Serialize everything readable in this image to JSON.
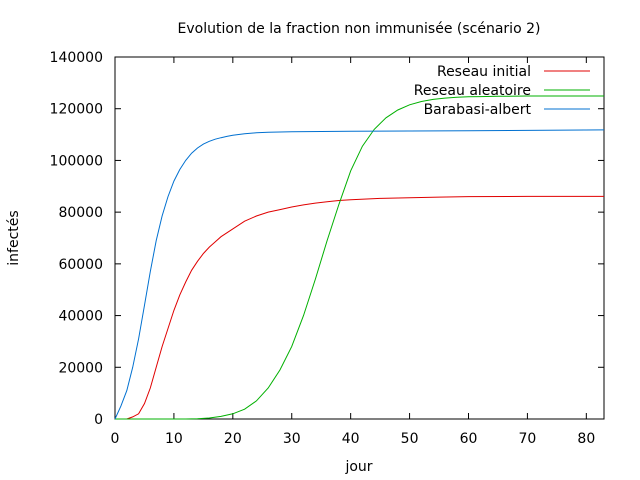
{
  "chart_data": {
    "type": "line",
    "title": "Evolution de la fraction non immunisée (scénario 2)",
    "xlabel": "jour",
    "ylabel": "infectés",
    "xlim": [
      0,
      83
    ],
    "ylim": [
      0,
      140000
    ],
    "xticks": [
      0,
      10,
      20,
      30,
      40,
      50,
      60,
      70,
      80
    ],
    "yticks": [
      0,
      20000,
      40000,
      60000,
      80000,
      100000,
      120000,
      140000
    ],
    "grid": false,
    "legend_position": "top-right",
    "series": [
      {
        "name": "Reseau initial",
        "color": "#e00000",
        "x": [
          0,
          1,
          2,
          3,
          4,
          5,
          6,
          7,
          8,
          9,
          10,
          11,
          12,
          13,
          14,
          15,
          16,
          17,
          18,
          19,
          20,
          22,
          24,
          26,
          28,
          30,
          32,
          34,
          36,
          38,
          40,
          45,
          50,
          55,
          60,
          70,
          83
        ],
        "y": [
          0,
          0,
          0,
          800,
          2000,
          6000,
          12000,
          20000,
          28000,
          35000,
          42000,
          48000,
          53000,
          57500,
          61000,
          64000,
          66500,
          68500,
          70500,
          72000,
          73500,
          76500,
          78500,
          80000,
          81000,
          82000,
          82800,
          83500,
          84000,
          84500,
          84800,
          85300,
          85600,
          85800,
          86000,
          86100,
          86100
        ]
      },
      {
        "name": "Reseau aleatoire",
        "color": "#00b000",
        "x": [
          0,
          5,
          10,
          12,
          14,
          16,
          18,
          20,
          22,
          24,
          26,
          28,
          30,
          32,
          34,
          36,
          38,
          40,
          42,
          44,
          46,
          48,
          50,
          52,
          54,
          56,
          58,
          60,
          62,
          65,
          70,
          75,
          83
        ],
        "y": [
          0,
          0,
          0,
          0,
          100,
          400,
          1000,
          2000,
          3800,
          7000,
          12000,
          19000,
          28000,
          40000,
          54000,
          69000,
          83000,
          96000,
          105500,
          112000,
          116500,
          119500,
          121500,
          122800,
          123600,
          124100,
          124400,
          124600,
          124700,
          124800,
          124900,
          124900,
          124900
        ]
      },
      {
        "name": "Barabasi-albert",
        "color": "#0070d0",
        "x": [
          0,
          1,
          2,
          3,
          4,
          5,
          6,
          7,
          8,
          9,
          10,
          11,
          12,
          13,
          14,
          15,
          16,
          17,
          18,
          19,
          20,
          22,
          24,
          26,
          28,
          30,
          35,
          40,
          50,
          60,
          70,
          83
        ],
        "y": [
          0,
          5000,
          11000,
          20000,
          31000,
          44000,
          57000,
          69000,
          78500,
          86000,
          92000,
          96500,
          100000,
          102800,
          104800,
          106300,
          107400,
          108200,
          108800,
          109300,
          109700,
          110300,
          110700,
          110900,
          111000,
          111100,
          111200,
          111300,
          111400,
          111500,
          111600,
          111800
        ]
      }
    ]
  }
}
